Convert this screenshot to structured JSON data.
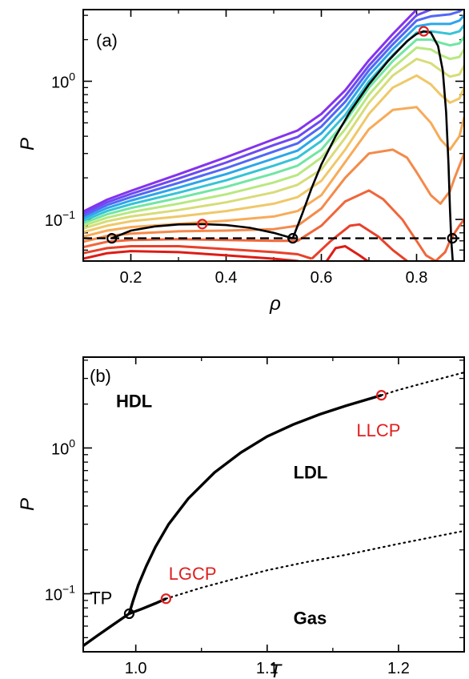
{
  "chart_data": [
    {
      "type": "line",
      "panel_label": "(a)",
      "xlabel": "ρ",
      "ylabel": "P",
      "xlim": [
        0.1,
        0.9
      ],
      "ylim": [
        0.05,
        3.3
      ],
      "yscale": "log",
      "xticks": [
        0.2,
        0.4,
        0.6,
        0.8
      ],
      "xtick_labels": [
        "0.2",
        "0.4",
        "0.6",
        "0.8"
      ],
      "yticks": [
        0.1,
        1
      ],
      "ytick_bases": [
        "10",
        "10"
      ],
      "ytick_exps": [
        "−1",
        "0"
      ],
      "grid": false,
      "isotherm_colors": [
        "#dd1c16",
        "#e8402a",
        "#f0663a",
        "#f48a4a",
        "#f7ab58",
        "#efc868",
        "#d7dc78",
        "#b8e880",
        "#94ec8e",
        "#70e6a2",
        "#4fd8bc",
        "#36c3d6",
        "#2ca6ea",
        "#3a86f4",
        "#5267f6",
        "#6c4af2",
        "#8433ee"
      ],
      "isotherms": [
        {
          "x": [
            0.1,
            0.15,
            0.2,
            0.3,
            0.4,
            0.5,
            0.55,
            0.58,
            0.6
          ],
          "y": [
            0.052,
            0.057,
            0.059,
            0.058,
            0.055,
            0.052,
            0.05,
            0.047,
            0.044
          ]
        },
        {
          "x": [
            0.6,
            0.63,
            0.65,
            0.68,
            0.72
          ],
          "y": [
            0.044,
            0.062,
            0.064,
            0.055,
            0.044
          ]
        },
        {
          "x": [
            0.1,
            0.15,
            0.2,
            0.3,
            0.4,
            0.5,
            0.55,
            0.58
          ],
          "y": [
            0.057,
            0.062,
            0.064,
            0.064,
            0.061,
            0.058,
            0.056,
            0.052
          ]
        },
        {
          "x": [
            0.58,
            0.62,
            0.66,
            0.68,
            0.72,
            0.75,
            0.78,
            0.81,
            0.82
          ],
          "y": [
            0.052,
            0.07,
            0.09,
            0.092,
            0.075,
            0.06,
            0.05,
            0.04,
            0.036
          ]
        },
        {
          "x": [
            0.1,
            0.15,
            0.2,
            0.3,
            0.4,
            0.5,
            0.55,
            0.6,
            0.65,
            0.7,
            0.73,
            0.77,
            0.8,
            0.82,
            0.84,
            0.86,
            0.87
          ],
          "y": [
            0.063,
            0.069,
            0.071,
            0.072,
            0.071,
            0.07,
            0.07,
            0.09,
            0.135,
            0.162,
            0.14,
            0.1,
            0.07,
            0.055,
            0.05,
            0.058,
            0.07
          ]
        },
        {
          "x": [
            0.87,
            0.88,
            0.89,
            0.9
          ],
          "y": [
            0.07,
            0.08,
            0.09,
            0.1
          ]
        },
        {
          "x": [
            0.1,
            0.15,
            0.2,
            0.3,
            0.4,
            0.5,
            0.55,
            0.6,
            0.65,
            0.7,
            0.75,
            0.78,
            0.8,
            0.83,
            0.85,
            0.87,
            0.88,
            0.9
          ],
          "y": [
            0.069,
            0.076,
            0.079,
            0.082,
            0.083,
            0.085,
            0.09,
            0.12,
            0.2,
            0.3,
            0.32,
            0.28,
            0.22,
            0.15,
            0.13,
            0.16,
            0.2,
            0.3
          ]
        },
        {
          "x": [
            0.1,
            0.15,
            0.2,
            0.3,
            0.4,
            0.5,
            0.55,
            0.6,
            0.65,
            0.7,
            0.75,
            0.8,
            0.83,
            0.85,
            0.87,
            0.89,
            0.9
          ],
          "y": [
            0.075,
            0.083,
            0.088,
            0.093,
            0.098,
            0.105,
            0.115,
            0.15,
            0.26,
            0.45,
            0.62,
            0.65,
            0.5,
            0.38,
            0.32,
            0.4,
            0.55
          ]
        },
        {
          "x": [
            0.1,
            0.15,
            0.2,
            0.3,
            0.4,
            0.5,
            0.55,
            0.6,
            0.65,
            0.7,
            0.75,
            0.8,
            0.83,
            0.85,
            0.87,
            0.89,
            0.9
          ],
          "y": [
            0.081,
            0.09,
            0.097,
            0.105,
            0.115,
            0.13,
            0.145,
            0.19,
            0.32,
            0.58,
            0.9,
            1.1,
            0.95,
            0.8,
            0.7,
            0.75,
            0.9
          ]
        },
        {
          "x": [
            0.1,
            0.15,
            0.2,
            0.3,
            0.4,
            0.5,
            0.55,
            0.6,
            0.65,
            0.7,
            0.75,
            0.8,
            0.83,
            0.85,
            0.87,
            0.89,
            0.9
          ],
          "y": [
            0.086,
            0.097,
            0.105,
            0.117,
            0.133,
            0.157,
            0.178,
            0.23,
            0.39,
            0.7,
            1.1,
            1.45,
            1.35,
            1.2,
            1.08,
            1.12,
            1.3
          ]
        },
        {
          "x": [
            0.1,
            0.15,
            0.2,
            0.3,
            0.4,
            0.5,
            0.55,
            0.6,
            0.65,
            0.7,
            0.75,
            0.8,
            0.83,
            0.85,
            0.87,
            0.89,
            0.9
          ],
          "y": [
            0.09,
            0.103,
            0.113,
            0.13,
            0.152,
            0.185,
            0.21,
            0.28,
            0.45,
            0.8,
            1.25,
            1.75,
            1.7,
            1.55,
            1.45,
            1.5,
            1.7
          ]
        },
        {
          "x": [
            0.1,
            0.15,
            0.2,
            0.3,
            0.4,
            0.5,
            0.55,
            0.6,
            0.65,
            0.7,
            0.75,
            0.8,
            0.83,
            0.85,
            0.87,
            0.89,
            0.9
          ],
          "y": [
            0.094,
            0.109,
            0.121,
            0.143,
            0.172,
            0.215,
            0.245,
            0.32,
            0.51,
            0.9,
            1.4,
            2.0,
            2.0,
            1.9,
            1.82,
            1.88,
            2.1
          ]
        },
        {
          "x": [
            0.1,
            0.15,
            0.2,
            0.3,
            0.4,
            0.5,
            0.55,
            0.6,
            0.65,
            0.7,
            0.75,
            0.8,
            0.83,
            0.85,
            0.87,
            0.89,
            0.9
          ],
          "y": [
            0.098,
            0.115,
            0.129,
            0.156,
            0.192,
            0.245,
            0.28,
            0.37,
            0.57,
            1.0,
            1.55,
            2.25,
            2.3,
            2.25,
            2.2,
            2.3,
            2.55
          ]
        },
        {
          "x": [
            0.1,
            0.15,
            0.2,
            0.3,
            0.4,
            0.5,
            0.55,
            0.6,
            0.65,
            0.7,
            0.75,
            0.8,
            0.83,
            0.85,
            0.87,
            0.89,
            0.9
          ],
          "y": [
            0.102,
            0.121,
            0.137,
            0.17,
            0.213,
            0.276,
            0.315,
            0.42,
            0.64,
            1.1,
            1.7,
            2.5,
            2.6,
            2.6,
            2.6,
            2.75,
            3.0
          ]
        },
        {
          "x": [
            0.1,
            0.15,
            0.2,
            0.3,
            0.4,
            0.5,
            0.55,
            0.6,
            0.65,
            0.7,
            0.75,
            0.8,
            0.83,
            0.85,
            0.87,
            0.89,
            0.9
          ],
          "y": [
            0.106,
            0.127,
            0.145,
            0.184,
            0.235,
            0.31,
            0.355,
            0.47,
            0.71,
            1.2,
            1.85,
            2.75,
            2.95,
            3.0,
            3.05,
            3.2,
            3.4
          ]
        },
        {
          "x": [
            0.1,
            0.15,
            0.2,
            0.3,
            0.4,
            0.5,
            0.55,
            0.6,
            0.65,
            0.7,
            0.75,
            0.8,
            0.83,
            0.85,
            0.87
          ],
          "y": [
            0.11,
            0.133,
            0.153,
            0.198,
            0.258,
            0.345,
            0.395,
            0.52,
            0.78,
            1.3,
            2.0,
            3.0,
            3.3,
            3.4,
            3.5
          ]
        },
        {
          "x": [
            0.1,
            0.15,
            0.2,
            0.3,
            0.4,
            0.5,
            0.55,
            0.6,
            0.65,
            0.7,
            0.75,
            0.8,
            0.83,
            0.85
          ],
          "y": [
            0.114,
            0.139,
            0.161,
            0.212,
            0.282,
            0.38,
            0.44,
            0.58,
            0.86,
            1.42,
            2.2,
            3.3,
            3.6,
            3.7
          ]
        }
      ],
      "lg_binodal": {
        "x": [
          0.16,
          0.2,
          0.25,
          0.3,
          0.35,
          0.4,
          0.45,
          0.5,
          0.54
        ],
        "y": [
          0.073,
          0.083,
          0.089,
          0.092,
          0.0925,
          0.091,
          0.087,
          0.08,
          0.073
        ]
      },
      "ll_binodal": {
        "x": [
          0.54,
          0.56,
          0.58,
          0.6,
          0.63,
          0.66,
          0.7,
          0.74,
          0.78,
          0.8,
          0.815,
          0.83,
          0.845,
          0.855,
          0.862,
          0.867,
          0.87,
          0.873,
          0.876
        ],
        "y": [
          0.073,
          0.11,
          0.17,
          0.25,
          0.4,
          0.6,
          0.95,
          1.4,
          1.95,
          2.2,
          2.3,
          2.25,
          1.8,
          1.2,
          0.6,
          0.25,
          0.12,
          0.07,
          0.05
        ]
      },
      "triple_line": {
        "x": [
          0.1,
          0.9
        ],
        "y": [
          0.073,
          0.073
        ]
      },
      "triple_points": {
        "x": [
          0.16,
          0.54,
          0.875
        ],
        "y": [
          0.073,
          0.073,
          0.073
        ]
      },
      "critical_points": {
        "x": [
          0.35,
          0.815
        ],
        "y": [
          0.0925,
          2.3
        ]
      }
    },
    {
      "type": "line",
      "panel_label": "(b)",
      "xlabel": "T",
      "ylabel": "P",
      "xlim": [
        0.96,
        1.25
      ],
      "ylim": [
        0.04,
        4.2
      ],
      "yscale": "log",
      "xticks": [
        1.0,
        1.1,
        1.2
      ],
      "xtick_labels": [
        "1.0",
        "1.1",
        "1.2"
      ],
      "yticks": [
        0.1,
        1
      ],
      "ytick_bases": [
        "10",
        "10"
      ],
      "ytick_exps": [
        "−1",
        "0"
      ],
      "grid": false,
      "gas_line": {
        "x": [
          0.96,
          0.97,
          0.98,
          0.99,
          0.995
        ],
        "y": [
          0.044,
          0.051,
          0.059,
          0.068,
          0.073
        ]
      },
      "lg_coexistence": {
        "x": [
          0.995,
          1.005,
          1.015,
          1.023
        ],
        "y": [
          0.073,
          0.079,
          0.086,
          0.0925
        ]
      },
      "ll_coexistence": {
        "x": [
          0.995,
          0.998,
          1.002,
          1.008,
          1.015,
          1.025,
          1.04,
          1.06,
          1.08,
          1.1,
          1.12,
          1.14,
          1.16,
          1.187
        ],
        "y": [
          0.073,
          0.09,
          0.115,
          0.155,
          0.21,
          0.3,
          0.45,
          0.68,
          0.93,
          1.2,
          1.45,
          1.7,
          1.95,
          2.3
        ]
      },
      "lg_extension": {
        "x": [
          1.023,
          1.05,
          1.08,
          1.1,
          1.13,
          1.16,
          1.2,
          1.25
        ],
        "y": [
          0.0925,
          0.11,
          0.13,
          0.145,
          0.165,
          0.185,
          0.22,
          0.27
        ]
      },
      "ll_extension": {
        "x": [
          1.187,
          1.2,
          1.22,
          1.25
        ],
        "y": [
          2.3,
          2.5,
          2.8,
          3.3
        ]
      },
      "triple_point": {
        "x": 0.995,
        "y": 0.073
      },
      "critical_points": {
        "x": [
          1.023,
          1.187
        ],
        "y": [
          0.0925,
          2.3
        ]
      },
      "annotations": [
        {
          "text": "HDL",
          "x": 0.985,
          "y": 1.9,
          "bold": true,
          "color": "#000000"
        },
        {
          "text": "LDL",
          "x": 1.12,
          "y": 0.62,
          "bold": true,
          "color": "#000000"
        },
        {
          "text": "Gas",
          "x": 1.12,
          "y": 0.062,
          "bold": true,
          "color": "#000000"
        },
        {
          "text": "TP",
          "x": 0.965,
          "y": 0.085,
          "bold": false,
          "color": "#000000"
        },
        {
          "text": "LGCP",
          "x": 1.025,
          "y": 0.125,
          "bold": false,
          "color": "#e01f1f"
        },
        {
          "text": "LLCP",
          "x": 1.168,
          "y": 1.2,
          "bold": false,
          "color": "#e01f1f"
        }
      ]
    }
  ],
  "colors": {
    "axis": "#000000",
    "critical_marker": "#e01f1f",
    "triple_marker": "#000000",
    "coexistence": "#000000"
  }
}
